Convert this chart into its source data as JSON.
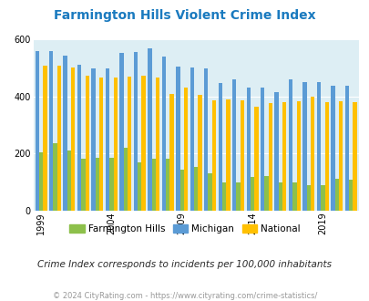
{
  "title": "Farmington Hills Violent Crime Index",
  "subtitle": "Crime Index corresponds to incidents per 100,000 inhabitants",
  "footer": "© 2024 CityRating.com - https://www.cityrating.com/crime-statistics/",
  "years": [
    1999,
    2000,
    2001,
    2002,
    2003,
    2004,
    2005,
    2006,
    2007,
    2008,
    2009,
    2010,
    2011,
    2012,
    2013,
    2014,
    2015,
    2016,
    2017,
    2018,
    2019,
    2020,
    2021
  ],
  "farmington_hills": [
    205,
    235,
    210,
    182,
    185,
    185,
    220,
    168,
    183,
    183,
    145,
    153,
    130,
    100,
    100,
    117,
    120,
    100,
    100,
    90,
    88,
    113,
    110
  ],
  "michigan": [
    557,
    557,
    543,
    510,
    497,
    497,
    553,
    555,
    568,
    538,
    503,
    500,
    497,
    447,
    458,
    431,
    431,
    414,
    459,
    451,
    451,
    438,
    438
  ],
  "national": [
    507,
    507,
    500,
    472,
    465,
    465,
    469,
    473,
    466,
    407,
    430,
    405,
    387,
    390,
    386,
    365,
    375,
    380,
    384,
    398,
    379,
    383,
    379
  ],
  "bar_colors": {
    "farmington_hills": "#8dc04b",
    "michigan": "#5b9bd5",
    "national": "#ffc000"
  },
  "background_color": "#ddeef4",
  "ylim": [
    0,
    600
  ],
  "yticks": [
    0,
    200,
    400,
    600
  ],
  "xtick_years": [
    1999,
    2004,
    2009,
    2014,
    2019
  ],
  "title_color": "#1a7abf",
  "subtitle_color": "#2a2a2a",
  "footer_color": "#999999",
  "legend_labels": [
    "Farmington Hills",
    "Michigan",
    "National"
  ],
  "bar_width": 0.28
}
